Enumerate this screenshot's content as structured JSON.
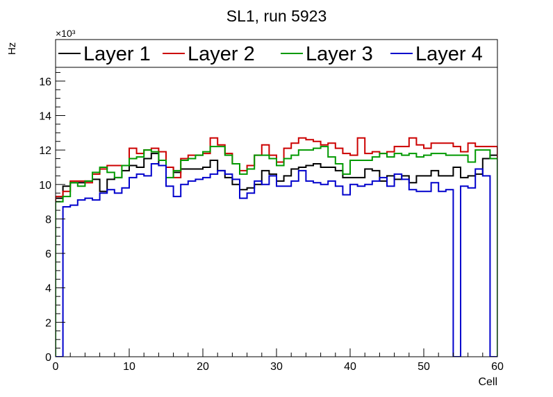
{
  "chart_data": {
    "type": "line",
    "title": "SL1, run 5923",
    "xlabel": "Cell",
    "ylabel": "Hz",
    "y_multiplier": "×10³",
    "xlim": [
      0,
      60
    ],
    "ylim": [
      0,
      16800
    ],
    "x_ticks": [
      0,
      10,
      20,
      30,
      40,
      50,
      60
    ],
    "y_ticks": [
      0,
      2000,
      4000,
      6000,
      8000,
      10000,
      12000,
      14000,
      16000
    ],
    "y_tick_labels": [
      "0",
      "2",
      "4",
      "6",
      "8",
      "10",
      "12",
      "14",
      "16"
    ],
    "x_tick_labels": [
      "0",
      "10",
      "20",
      "30",
      "40",
      "50",
      "60"
    ],
    "legend_placement": "top",
    "series": [
      {
        "name": "Layer 1",
        "color": "#000000",
        "bin_start": 0,
        "values": [
          9200,
          9900,
          10100,
          10100,
          10200,
          10300,
          9600,
          10300,
          10400,
          10800,
          11100,
          11000,
          11500,
          11800,
          11100,
          11000,
          10700,
          10900,
          10900,
          10900,
          11000,
          11400,
          10800,
          10400,
          10000,
          9700,
          9800,
          10000,
          10800,
          10600,
          10200,
          10500,
          10900,
          11000,
          11100,
          11200,
          11000,
          11000,
          10800,
          10400,
          10400,
          10400,
          10900,
          10800,
          10200,
          10500,
          10300,
          10500,
          10100,
          10500,
          10500,
          10800,
          10500,
          10500,
          11000,
          10400,
          10500,
          10600,
          11500,
          11700
        ]
      },
      {
        "name": "Layer 2",
        "color": "#cc0000",
        "bin_start": 0,
        "values": [
          9300,
          9600,
          10200,
          10200,
          10100,
          10600,
          10900,
          11100,
          11100,
          11100,
          12100,
          11800,
          12000,
          12100,
          11900,
          11000,
          10400,
          11500,
          11700,
          11700,
          11800,
          12700,
          12300,
          11800,
          11200,
          10800,
          11100,
          11700,
          12300,
          11700,
          11300,
          12100,
          12400,
          12700,
          12600,
          12500,
          12300,
          12400,
          12100,
          11800,
          11700,
          12700,
          11800,
          11900,
          11800,
          11900,
          12200,
          12200,
          12700,
          12300,
          12100,
          12400,
          12400,
          12400,
          12200,
          11900,
          12400,
          12200,
          12200,
          12200
        ]
      },
      {
        "name": "Layer 3",
        "color": "#009900",
        "bin_start": 0,
        "values": [
          9000,
          9300,
          10100,
          9900,
          10200,
          10700,
          11000,
          10700,
          10400,
          11100,
          11500,
          11600,
          12000,
          11900,
          11400,
          10400,
          10800,
          11400,
          11500,
          11700,
          11900,
          12200,
          12200,
          11700,
          11200,
          10600,
          10900,
          11700,
          11700,
          11500,
          11100,
          11500,
          11700,
          12000,
          12000,
          12100,
          12200,
          11600,
          11200,
          10600,
          11400,
          11400,
          11400,
          11600,
          11800,
          11600,
          11800,
          11700,
          11800,
          11600,
          11700,
          11800,
          11800,
          11700,
          11700,
          11700,
          11300,
          12000,
          12000,
          11500
        ]
      },
      {
        "name": "Layer 4",
        "color": "#0000cc",
        "bin_start": 0,
        "values": [
          0,
          8700,
          8800,
          9100,
          9200,
          9100,
          9500,
          9700,
          9500,
          9800,
          10400,
          10600,
          10500,
          11200,
          11100,
          9900,
          9300,
          10000,
          10200,
          10300,
          10400,
          10600,
          10800,
          10600,
          10300,
          9200,
          9500,
          10200,
          10000,
          10500,
          9900,
          9900,
          10200,
          10800,
          10200,
          10100,
          10000,
          10200,
          9900,
          9400,
          10000,
          9900,
          10000,
          10200,
          10400,
          9900,
          10600,
          10300,
          9700,
          9600,
          9600,
          10100,
          9600,
          9700,
          0,
          9900,
          9800,
          10900,
          10500,
          0
        ]
      }
    ]
  }
}
